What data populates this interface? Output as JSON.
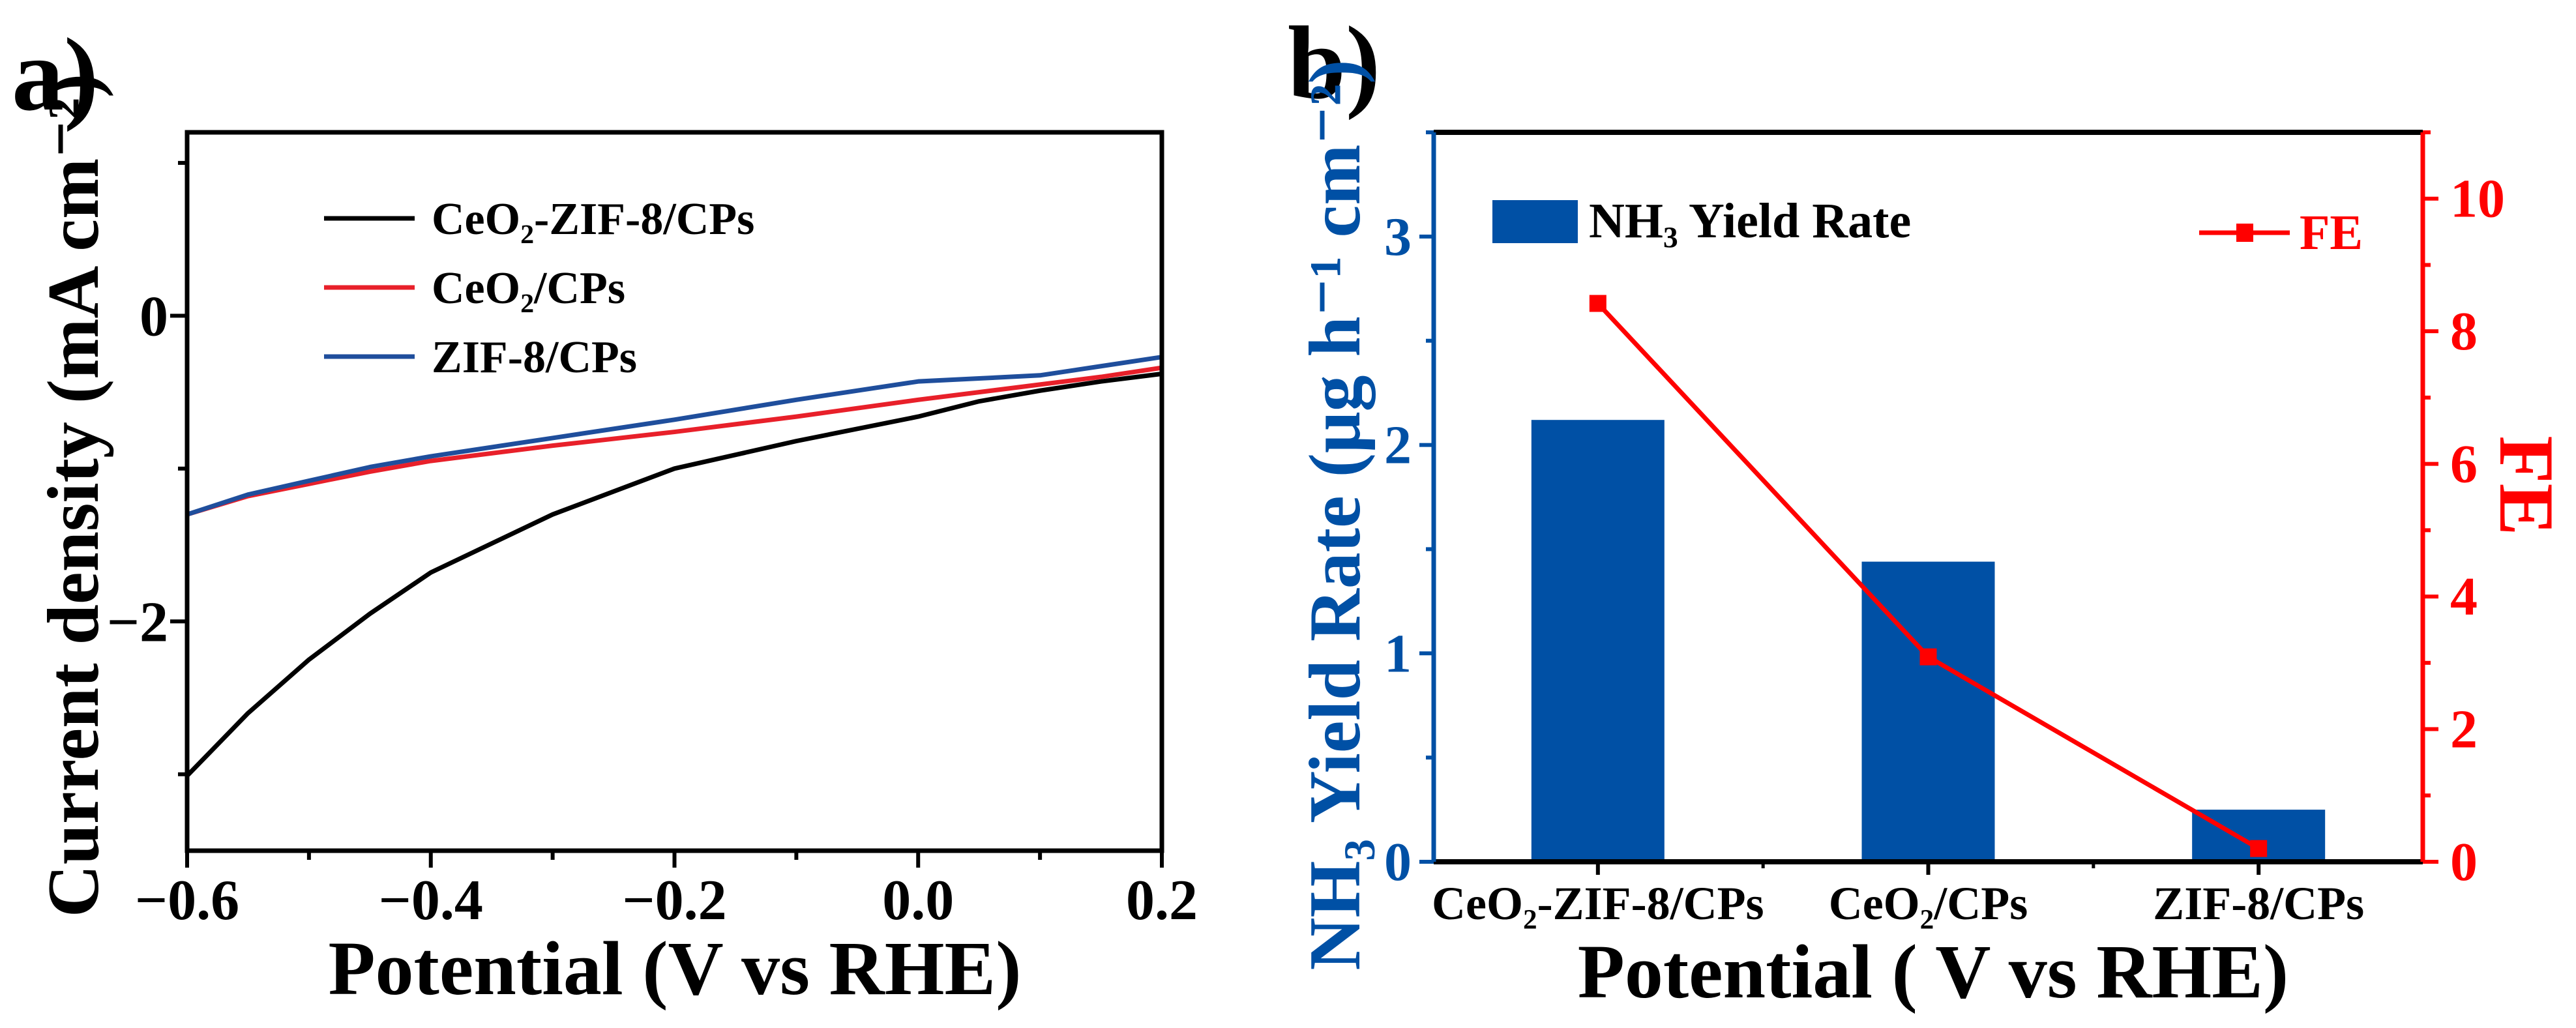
{
  "colors": {
    "black": "#000000",
    "red": "#ff0000",
    "blue": "#0050a5",
    "curve_blue": "#1f4e9c",
    "curve_red": "#e8202a"
  },
  "chart_data": [
    {
      "panel_label": "a)",
      "type": "line",
      "xlabel": "Potential (V vs RHE)",
      "ylabel": "Current density (mA cm⁻²)",
      "xlim": [
        -0.6,
        0.2
      ],
      "ylim": [
        -3.5,
        1.2
      ],
      "xticks": [
        -0.6,
        -0.4,
        -0.2,
        0.0,
        0.2
      ],
      "xtick_labels": [
        "−0.6",
        "−0.4",
        "−0.2",
        "0.0",
        "0.2"
      ],
      "yticks": [
        -2,
        0
      ],
      "ytick_labels": [
        "−2",
        "0"
      ],
      "legend_position": "top-left",
      "x": [
        -0.6,
        -0.55,
        -0.5,
        -0.45,
        -0.4,
        -0.3,
        -0.2,
        -0.1,
        0.0,
        0.05,
        0.1,
        0.15,
        0.2
      ],
      "series": [
        {
          "name": "CeO₂-ZIF-8/CPs",
          "color": "#000000",
          "values": [
            -3.01,
            -2.6,
            -2.25,
            -1.95,
            -1.68,
            -1.3,
            -1.0,
            -0.82,
            -0.66,
            -0.56,
            -0.49,
            -0.43,
            -0.38
          ]
        },
        {
          "name": "CeO₂/CPs",
          "color": "#e8202a",
          "values": [
            -1.3,
            -1.18,
            -1.1,
            -1.02,
            -0.95,
            -0.85,
            -0.76,
            -0.66,
            -0.55,
            -0.5,
            -0.45,
            -0.4,
            -0.34
          ]
        },
        {
          "name": "ZIF-8/CPs",
          "color": "#1f4e9c",
          "values": [
            -1.3,
            -1.17,
            -1.08,
            -0.99,
            -0.92,
            -0.8,
            -0.68,
            -0.55,
            -0.43,
            -0.41,
            -0.39,
            -0.33,
            -0.27
          ]
        }
      ]
    },
    {
      "panel_label": "b)",
      "type": "bar",
      "xlabel": "Potential ( V vs RHE)",
      "ylabel": "NH₃ Yield Rate (μg h⁻¹ cm⁻²)",
      "y2label": "FE",
      "categories": [
        "CeO₂-ZIF-8/CPs",
        "CeO₂/CPs",
        "ZIF-8/CPs"
      ],
      "ylim": [
        0,
        3.5
      ],
      "y2lim": [
        0,
        11
      ],
      "yticks": [
        0,
        1,
        2,
        3
      ],
      "ytick_labels": [
        "0",
        "1",
        "2",
        "3"
      ],
      "y2ticks": [
        0,
        2,
        4,
        6,
        8,
        10
      ],
      "y2tick_labels": [
        "0",
        "2",
        "4",
        "6",
        "8",
        "10"
      ],
      "legend_position": "top",
      "series": [
        {
          "name": "NH₃ Yield Rate",
          "type": "bar",
          "axis": "left",
          "color": "#0050a5",
          "values": [
            2.12,
            1.44,
            0.25
          ]
        },
        {
          "name": "FE",
          "type": "line",
          "marker": "square",
          "axis": "right",
          "color": "#ff0000",
          "values": [
            8.42,
            3.09,
            0.2
          ]
        }
      ]
    }
  ]
}
